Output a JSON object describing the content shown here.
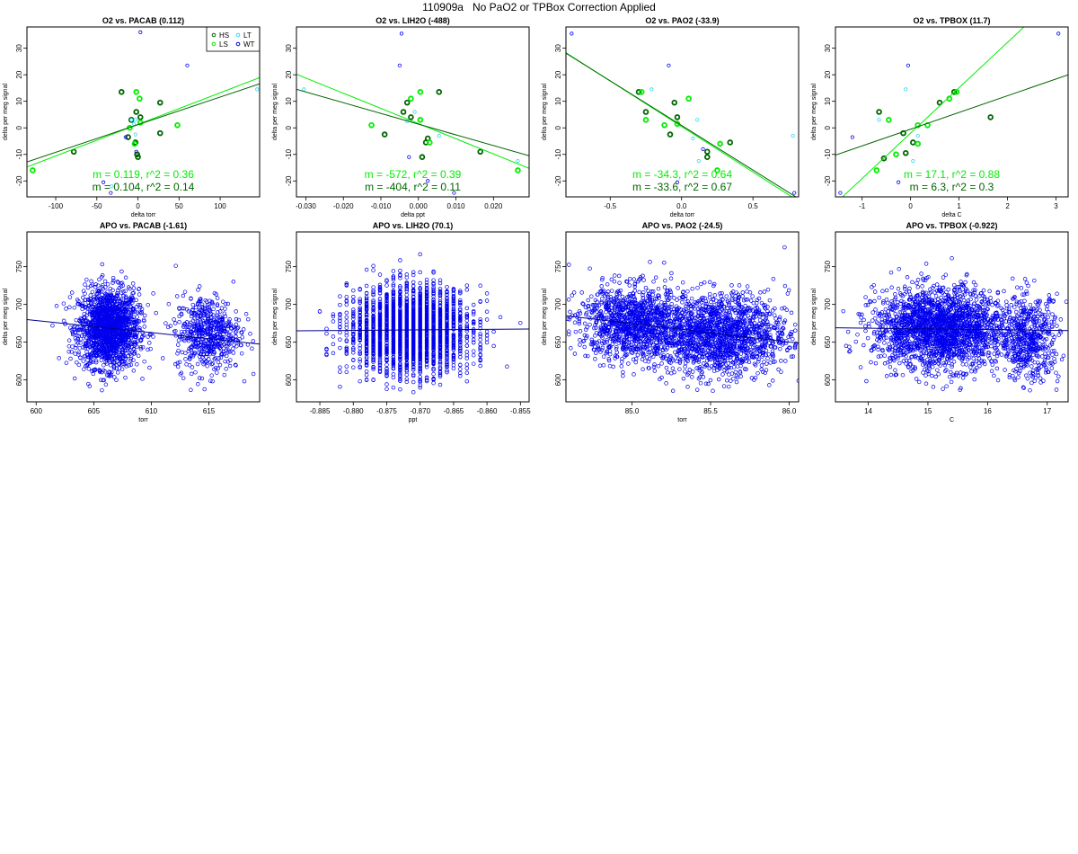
{
  "page_title": "110909a   No PaO2 or TPBox Correction Applied",
  "colors": {
    "HS": "#006400",
    "LS": "#00ee00",
    "LT": "#33d6ee",
    "WT": "#0000ee",
    "apo": "#0000ee"
  },
  "chart_data": [
    {
      "type": "scatter",
      "title": "O2 vs. PACAB (0.112)",
      "xlabel": "delta torr",
      "ylabel": "delta per meg signal",
      "xlim": [
        -135,
        148
      ],
      "ylim": [
        -26,
        38
      ],
      "xticks": [
        -100,
        -50,
        0,
        50,
        100
      ],
      "yticks": [
        -20,
        -10,
        0,
        10,
        20,
        30
      ],
      "legend": {
        "position": "top-right",
        "entries": [
          "HS",
          "LT",
          "LS",
          "WT"
        ]
      },
      "series": [
        {
          "name": "HS",
          "thick": true,
          "points": [
            [
              -20,
              13.5
            ],
            [
              -78,
              -9
            ],
            [
              -2,
              6
            ],
            [
              -1,
              -10
            ],
            [
              0,
              -11
            ],
            [
              3,
              4
            ],
            [
              -8,
              3
            ],
            [
              27,
              9.5
            ],
            [
              27,
              -2
            ],
            [
              -3,
              -5.5
            ],
            [
              -12,
              -3.5
            ]
          ]
        },
        {
          "name": "LS",
          "thick": true,
          "points": [
            [
              -128,
              -16
            ],
            [
              -2,
              13.5
            ],
            [
              2,
              11
            ],
            [
              -4,
              -6
            ],
            [
              48,
              1
            ],
            [
              -10,
              0
            ],
            [
              3,
              2
            ]
          ]
        },
        {
          "name": "LT",
          "thick": false,
          "points": [
            [
              -3,
              -2.5
            ],
            [
              -5,
              1.5
            ],
            [
              -3,
              3
            ],
            [
              -8,
              3
            ],
            [
              -32,
              -22
            ],
            [
              145,
              14.5
            ]
          ]
        },
        {
          "name": "WT",
          "thick": false,
          "points": [
            [
              3,
              36
            ],
            [
              60,
              23.5
            ],
            [
              -15,
              -3.5
            ],
            [
              -33,
              -24.5
            ],
            [
              -42,
              -20.5
            ],
            [
              -2,
              -9
            ]
          ]
        }
      ],
      "fits": [
        {
          "series": "LS",
          "slope": 0.119,
          "intercept": 1.3
        },
        {
          "series": "HS",
          "slope": 0.104,
          "intercept": 1.2
        }
      ],
      "annotations": [
        "m = 0.119, r^2 = 0.36",
        "m = 0.104, r^2 = 0.14"
      ]
    },
    {
      "type": "scatter",
      "title": "O2 vs. LIH2O (-488)",
      "xlabel": "delta ppt",
      "ylabel": "delta per meg signal",
      "xlim": [
        -0.0325,
        0.0295
      ],
      "ylim": [
        -26,
        38
      ],
      "xticks": [
        -0.03,
        -0.02,
        -0.01,
        0.0,
        0.01,
        0.02
      ],
      "yticks": [
        -20,
        -10,
        0,
        10,
        20,
        30
      ],
      "series": [
        {
          "name": "HS",
          "thick": true,
          "points": [
            [
              -0.009,
              -2.5
            ],
            [
              0.0055,
              13.5
            ],
            [
              -0.003,
              9.5
            ],
            [
              -0.002,
              4
            ],
            [
              0.0025,
              -4
            ],
            [
              0.001,
              -11
            ],
            [
              0.0165,
              -9
            ],
            [
              0.002,
              -5.5
            ],
            [
              -0.004,
              6
            ]
          ]
        },
        {
          "name": "LS",
          "thick": true,
          "points": [
            [
              -0.0125,
              1
            ],
            [
              -0.002,
              11
            ],
            [
              0.0005,
              13.5
            ],
            [
              0.0265,
              -16
            ],
            [
              0.003,
              -5.5
            ],
            [
              0.0005,
              3
            ]
          ]
        },
        {
          "name": "LT",
          "thick": false,
          "points": [
            [
              -0.0305,
              14.5
            ],
            [
              -0.001,
              6
            ],
            [
              -0.003,
              2.5
            ],
            [
              0.0055,
              -3
            ],
            [
              0.0265,
              -12.5
            ]
          ]
        },
        {
          "name": "WT",
          "thick": false,
          "points": [
            [
              -0.0045,
              35.5
            ],
            [
              -0.005,
              23.5
            ],
            [
              0.0095,
              -24.5
            ],
            [
              0.0025,
              -20
            ],
            [
              -0.0025,
              -11
            ]
          ]
        }
      ],
      "fits": [
        {
          "series": "LS",
          "slope": -572,
          "intercept": 1.6
        },
        {
          "series": "HS",
          "slope": -404,
          "intercept": 1.4
        }
      ],
      "annotations": [
        "m = -572, r^2 = 0.39",
        "m = -404, r^2 = 0.11"
      ]
    },
    {
      "type": "scatter",
      "title": "O2 vs. PAO2 (-33.9)",
      "xlabel": "delta torr",
      "ylabel": "delta per meg signal",
      "xlim": [
        -0.81,
        0.82
      ],
      "ylim": [
        -26,
        38
      ],
      "xticks": [
        -0.5,
        0.0,
        0.5
      ],
      "yticks": [
        -20,
        -10,
        0,
        10,
        20,
        30
      ],
      "series": [
        {
          "name": "HS",
          "thick": true,
          "points": [
            [
              -0.25,
              6
            ],
            [
              -0.3,
              13.5
            ],
            [
              -0.05,
              9.5
            ],
            [
              -0.03,
              4
            ],
            [
              -0.08,
              -2.5
            ],
            [
              0.18,
              -9
            ],
            [
              0.18,
              -11
            ],
            [
              0.34,
              -5.5
            ]
          ]
        },
        {
          "name": "LS",
          "thick": true,
          "points": [
            [
              -0.28,
              13.5
            ],
            [
              0.05,
              11
            ],
            [
              -0.25,
              3
            ],
            [
              0.27,
              -6
            ],
            [
              0.25,
              -16
            ],
            [
              -0.12,
              1
            ],
            [
              -0.03,
              1.5
            ]
          ]
        },
        {
          "name": "LT",
          "thick": false,
          "points": [
            [
              -0.21,
              14.5
            ],
            [
              0.08,
              -4
            ],
            [
              0.11,
              3
            ],
            [
              0.12,
              -12.5
            ],
            [
              0.78,
              -3
            ]
          ]
        },
        {
          "name": "WT",
          "thick": false,
          "points": [
            [
              -0.77,
              35.5
            ],
            [
              -0.09,
              23.5
            ],
            [
              0.79,
              -24.5
            ],
            [
              -0.03,
              -20.5
            ],
            [
              0.15,
              -8
            ]
          ]
        }
      ],
      "fits": [
        {
          "series": "LS",
          "slope": -34.3,
          "intercept": 0.5
        },
        {
          "series": "HS",
          "slope": -33.6,
          "intercept": 0.9
        }
      ],
      "annotations": [
        "m = -34.3, r^2 = 0.64",
        "m = -33.6, r^2 = 0.67"
      ]
    },
    {
      "type": "scatter",
      "title": "O2 vs. TPBOX (11.7)",
      "xlabel": "delta C",
      "ylabel": "delta per meg signal",
      "xlim": [
        -1.55,
        3.25
      ],
      "ylim": [
        -26,
        38
      ],
      "xticks": [
        -1,
        0,
        1,
        2,
        3
      ],
      "yticks": [
        -20,
        -10,
        0,
        10,
        20,
        30
      ],
      "series": [
        {
          "name": "HS",
          "thick": true,
          "points": [
            [
              -0.65,
              6
            ],
            [
              -0.15,
              -2
            ],
            [
              -0.1,
              -9.5
            ],
            [
              0.05,
              -5.5
            ],
            [
              0.6,
              9.5
            ],
            [
              0.9,
              13.5
            ],
            [
              1.65,
              4
            ],
            [
              -0.55,
              -11.5
            ]
          ]
        },
        {
          "name": "LS",
          "thick": true,
          "points": [
            [
              -0.45,
              3
            ],
            [
              -0.7,
              -16
            ],
            [
              0.15,
              -6
            ],
            [
              0.35,
              1
            ],
            [
              0.8,
              11
            ],
            [
              0.95,
              13.5
            ],
            [
              0.15,
              1
            ],
            [
              -0.3,
              -10
            ]
          ]
        },
        {
          "name": "LT",
          "thick": false,
          "points": [
            [
              -0.65,
              3
            ],
            [
              -0.1,
              14.5
            ],
            [
              0.15,
              -3
            ],
            [
              0.05,
              -12.5
            ]
          ]
        },
        {
          "name": "WT",
          "thick": false,
          "points": [
            [
              3.05,
              35.5
            ],
            [
              -0.05,
              23.5
            ],
            [
              -1.45,
              -24.5
            ],
            [
              -1.2,
              -3.5
            ],
            [
              -0.25,
              -20.5
            ]
          ]
        }
      ],
      "fits": [
        {
          "series": "LS",
          "slope": 17.1,
          "intercept": -2
        },
        {
          "series": "HS",
          "slope": 6.3,
          "intercept": -0.5
        }
      ],
      "annotations": [
        "m = 17.1, r^2 = 0.88",
        "m = 6.3, r^2 = 0.3"
      ]
    },
    {
      "type": "scatter",
      "title": "APO vs. PACAB (-1.61)",
      "xlabel": "torr",
      "ylabel": "delta per meg signal",
      "xlim": [
        599.2,
        619.4
      ],
      "ylim": [
        571,
        796
      ],
      "xticks": [
        600,
        605,
        610,
        615
      ],
      "yticks": [
        600,
        650,
        700,
        750
      ],
      "cloud": {
        "n": 2200,
        "clusters": [
          {
            "x_mean": 606.3,
            "x_sd": 1.3,
            "y_mean": 668,
            "y_sd": 26,
            "weight": 0.75
          },
          {
            "x_mean": 614.9,
            "x_sd": 1.4,
            "y_mean": 662,
            "y_sd": 25,
            "weight": 0.25
          }
        ]
      },
      "fit": {
        "slope": -1.61,
        "x0": 599.2,
        "y0": 680
      }
    },
    {
      "type": "scatter",
      "title": "APO vs. LIH2O (70.1)",
      "xlabel": "ppt",
      "ylabel": "delta per meg signal",
      "xlim": [
        -0.8885,
        -0.8537
      ],
      "ylim": [
        571,
        796
      ],
      "xticks": [
        -0.885,
        -0.88,
        -0.875,
        -0.87,
        -0.865,
        -0.86,
        -0.855
      ],
      "yticks": [
        600,
        650,
        700,
        750
      ],
      "cloud": {
        "n": 2600,
        "quantize": 0.001,
        "clusters": [
          {
            "x_mean": -0.8715,
            "x_sd": 0.0045,
            "y_mean": 666,
            "y_sd": 28,
            "weight": 1
          }
        ]
      },
      "fit": {
        "slope": 70.1,
        "x0": -0.8885,
        "y0": 665
      }
    },
    {
      "type": "scatter",
      "title": "APO vs. PAO2 (-24.5)",
      "xlabel": "torr",
      "ylabel": "delta per meg signal",
      "xlim": [
        84.58,
        86.06
      ],
      "ylim": [
        571,
        796
      ],
      "xticks": [
        85.0,
        85.5,
        86.0
      ],
      "yticks": [
        600,
        650,
        700,
        750
      ],
      "cloud": {
        "n": 2600,
        "clusters": [
          {
            "x_mean": 85.0,
            "x_sd": 0.17,
            "y_mean": 676,
            "y_sd": 24,
            "weight": 0.4
          },
          {
            "x_mean": 85.55,
            "x_sd": 0.22,
            "y_mean": 660,
            "y_sd": 27,
            "weight": 0.6
          }
        ]
      },
      "fit": {
        "slope": -24.5,
        "x0": 84.58,
        "y0": 685
      }
    },
    {
      "type": "scatter",
      "title": "APO vs. TPBOX (-0.922)",
      "xlabel": "C",
      "ylabel": "delta per meg signal",
      "xlim": [
        13.45,
        17.35
      ],
      "ylim": [
        571,
        796
      ],
      "xticks": [
        14,
        15,
        16,
        17
      ],
      "yticks": [
        600,
        650,
        700,
        750
      ],
      "cloud": {
        "n": 2600,
        "clusters": [
          {
            "x_mean": 15.2,
            "x_sd": 0.55,
            "y_mean": 668,
            "y_sd": 26,
            "weight": 0.8
          },
          {
            "x_mean": 16.7,
            "x_sd": 0.25,
            "y_mean": 655,
            "y_sd": 28,
            "weight": 0.2
          }
        ]
      },
      "fit": {
        "slope": -0.922,
        "x0": 13.45,
        "y0": 669
      }
    }
  ]
}
